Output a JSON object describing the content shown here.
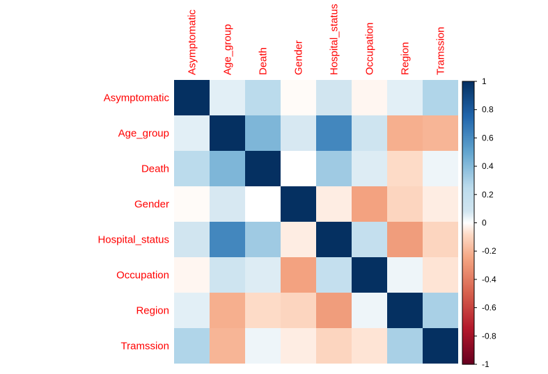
{
  "chart_data": {
    "type": "heatmap",
    "title": "",
    "variables": [
      "Asymptomatic",
      "Age_group",
      "Death",
      "Gender",
      "Hospital_status",
      "Occupation",
      "Region",
      "Tramssion"
    ],
    "matrix": [
      [
        1.0,
        0.05,
        0.25,
        -0.01,
        0.08,
        -0.02,
        0.05,
        0.28
      ],
      [
        0.05,
        1.0,
        0.42,
        0.07,
        0.62,
        0.1,
        -0.22,
        -0.2
      ],
      [
        0.25,
        0.42,
        1.0,
        0.0,
        0.33,
        0.06,
        -0.08,
        0.03
      ],
      [
        -0.01,
        0.07,
        0.0,
        1.0,
        -0.04,
        -0.26,
        -0.1,
        -0.04
      ],
      [
        0.08,
        0.62,
        0.33,
        -0.04,
        1.0,
        0.18,
        -0.28,
        -0.1
      ],
      [
        -0.02,
        0.1,
        0.06,
        -0.26,
        0.18,
        1.0,
        0.03,
        -0.06
      ],
      [
        0.05,
        -0.22,
        -0.08,
        -0.1,
        -0.28,
        0.03,
        1.0,
        0.3
      ],
      [
        0.28,
        -0.2,
        0.03,
        -0.04,
        -0.1,
        -0.06,
        0.3,
        1.0
      ]
    ],
    "colorbar": {
      "range": [
        -1,
        1
      ],
      "ticks": [
        "1",
        "0.8",
        "0.6",
        "0.4",
        "0.2",
        "0",
        "-0.2",
        "-0.4",
        "-0.6",
        "-0.8",
        "-1"
      ]
    },
    "colors": {
      "label": "#ff0000",
      "negative_end": "#67001f",
      "positive_end": "#053061",
      "mid": "#ffffff"
    }
  }
}
